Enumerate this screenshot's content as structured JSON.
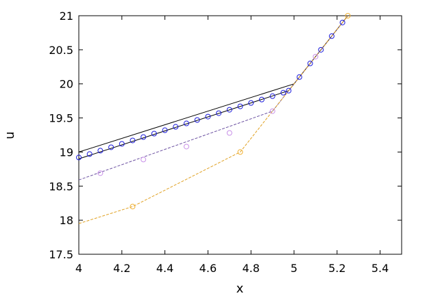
{
  "chart_data": {
    "type": "line",
    "title": "",
    "xlabel": "x",
    "ylabel": "u",
    "xlim": [
      4,
      5.5
    ],
    "ylim": [
      17.5,
      21
    ],
    "xticks": [
      4,
      4.2,
      4.4,
      4.6,
      4.8,
      5,
      5.2,
      5.4
    ],
    "xtick_labels": [
      "4",
      "4.2",
      "4.4",
      "4.6",
      "4.8",
      "5",
      "5.2",
      "5.4"
    ],
    "yticks": [
      17.5,
      18,
      18.5,
      19,
      19.5,
      20,
      20.5,
      21
    ],
    "ytick_labels": [
      "17.5",
      "18",
      "18.5",
      "19",
      "19.5",
      "20",
      "20.5",
      "21"
    ],
    "grid": false,
    "legend": "none",
    "series": [
      {
        "style": "solid",
        "color": "#000000",
        "x": [
          4,
          5,
          5.25
        ],
        "y": [
          19.0,
          20.0,
          21.0
        ]
      },
      {
        "style": "solid",
        "color": "#000000",
        "x": [
          4,
          4.975,
          5.25
        ],
        "y": [
          18.9,
          19.9,
          21.0
        ]
      },
      {
        "style": "dashed",
        "color": "#6a4fa0",
        "x": [
          4,
          4.9,
          5.25
        ],
        "y": [
          18.59,
          19.6,
          21.0
        ]
      },
      {
        "style": "dashed",
        "color": "#e0a020",
        "x": [
          4,
          4.25,
          4.75,
          5.25
        ],
        "y": [
          17.95,
          18.2,
          19.0,
          21.0
        ]
      },
      {
        "style": "markers",
        "color": "#1a1adc",
        "x": [
          4.0,
          4.05,
          4.1,
          4.15,
          4.2,
          4.25,
          4.3,
          4.35,
          4.4,
          4.45,
          4.5,
          4.55,
          4.6,
          4.65,
          4.7,
          4.75,
          4.8,
          4.85,
          4.9,
          4.95,
          4.975,
          5.025,
          5.075,
          5.125,
          5.175,
          5.225
        ],
        "y": [
          18.92,
          18.97,
          19.02,
          19.07,
          19.12,
          19.17,
          19.22,
          19.27,
          19.32,
          19.37,
          19.42,
          19.47,
          19.52,
          19.57,
          19.62,
          19.67,
          19.72,
          19.77,
          19.82,
          19.87,
          19.9,
          20.1,
          20.3,
          20.5,
          20.7,
          20.9
        ]
      },
      {
        "style": "markers",
        "color": "#c890e8",
        "x": [
          4.1,
          4.3,
          4.5,
          4.7,
          4.9,
          5.1
        ],
        "y": [
          18.69,
          18.89,
          19.08,
          19.28,
          19.6,
          20.4
        ]
      },
      {
        "style": "markers",
        "color": "#f0b030",
        "x": [
          4.25,
          4.75,
          5.25
        ],
        "y": [
          18.2,
          19.0,
          21.0
        ]
      }
    ]
  }
}
